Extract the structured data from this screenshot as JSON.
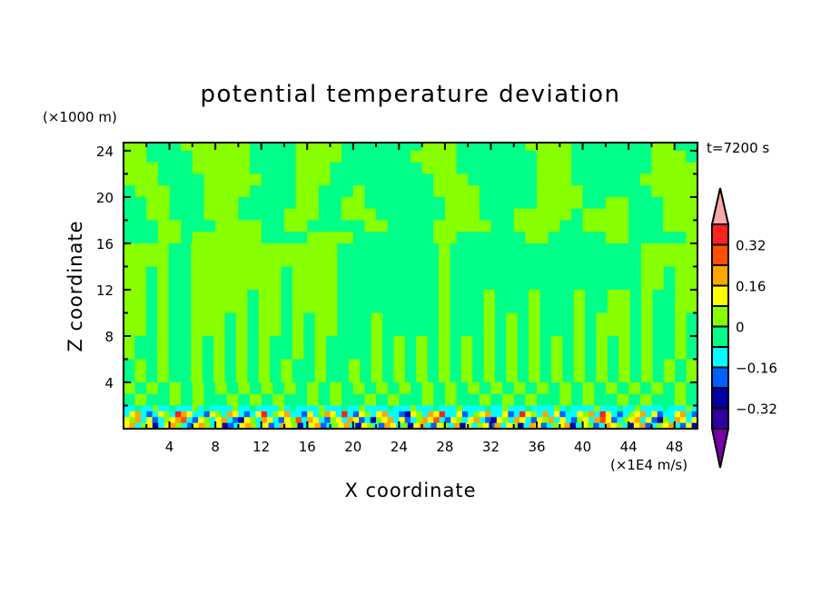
{
  "chart_data": {
    "type": "heatmap",
    "title": "potential temperature deviation",
    "xlabel": "X coordinate",
    "ylabel": "Z coordinate",
    "x_units": "(×1E4 m/s)",
    "y_units": "(×1000 m)",
    "time_label": "t=7200 s",
    "xlim": [
      0,
      50
    ],
    "ylim": [
      0,
      24.7
    ],
    "x_ticks": [
      4,
      8,
      12,
      16,
      20,
      24,
      28,
      32,
      36,
      40,
      44,
      48
    ],
    "y_ticks": [
      4,
      8,
      12,
      16,
      20,
      24
    ],
    "colorbar": {
      "levels": [
        -0.4,
        -0.32,
        -0.24,
        -0.16,
        -0.08,
        0,
        0.08,
        0.16,
        0.24,
        0.32,
        0.4
      ],
      "labeled_levels": [
        "0.32",
        "0.16",
        "0",
        "−0.16",
        "−0.32"
      ],
      "labeled_values": [
        0.32,
        0.16,
        0,
        -0.16,
        -0.32
      ],
      "over_color": "#f8a8a8",
      "under_color": "#7800a8",
      "colors": [
        "#3000a0",
        "#0000a8",
        "#0060ff",
        "#00ffff",
        "#00ff88",
        "#88ff00",
        "#ffff00",
        "#ffa500",
        "#ff5000",
        "#ff2020"
      ]
    },
    "cell_key": {
      "V": "#7800a8",
      "I": "#3000a0",
      "D": "#0000a8",
      "B": "#0060ff",
      "C": "#00ffff",
      "S": "#00ff88",
      "G": "#88ff00",
      "Y": "#ffff00",
      "O": "#ffa500",
      "r": "#ff5000",
      "R": "#ff2020",
      "P": "#f8a8a8"
    },
    "rows": [
      {
        "z": [
          24,
          24.7
        ],
        "cells": "GGSSSGGGGGGSSSSGGGGSSSSSSSGGGSSSSSSGGGGSSSSSSSGGSS"
      },
      {
        "z": [
          23,
          24
        ],
        "cells": "GGSSSSGGGGGSSSSGGGGSSSSSSGGGGSSSSSSSGGGSSSSSSSGGGS"
      },
      {
        "z": [
          22,
          23
        ],
        "cells": "GGGSSSGGGGGSSSSGGGSSSSSSSSGGGSSSSSSSGGGSSSSSSSGGGG"
      },
      {
        "z": [
          21,
          22
        ],
        "cells": "GGGSSSSGGGGGSSSGGGSSSSSSSSSGGGSSSSSSGGGSSSSSSGGGGG"
      },
      {
        "z": [
          20,
          21
        ],
        "cells": "SGGGSSSGGGGSSSSGGSSSGSSSSSSGGGGSSSSSGGGGSSSSSSGGGG"
      },
      {
        "z": [
          19,
          20
        ],
        "cells": "SSGGSSSGGGSSSSSGGSSGGSSSSSSSGGGSSSSSGGGGSSGGSSSGGG"
      },
      {
        "z": [
          18,
          19
        ],
        "cells": "SSGGSSSGGGSSSSGGGSSGGGSSSSSSGGGSSSGGGGGSGGGGSSSGGG"
      },
      {
        "z": [
          17,
          18
        ],
        "cells": "SSSGGSSSGGGGSSGGSSSSSGGSSSSGGGGGSSGGGGSSGGGGSSSGGG"
      },
      {
        "z": [
          16,
          17
        ],
        "cells": "SSSGGSGGGGGGSSSSGGGGSSSSSSSGGSSSSSSGGSSSSSGGSSSSSG"
      },
      {
        "z": [
          14,
          16
        ],
        "cells": "GGGGSSGGGGGGGGGGGGGSSSSSSSSSGSSSSSSSSSSSSSSSSSGGGGG"
      },
      {
        "z": [
          12,
          14
        ],
        "cells": "GGSGSSGGGGGGGGSGGGGSSSSSSSSSGSSSSSSSSSSSSSSSSSGGSGG"
      },
      {
        "z": [
          10,
          12
        ],
        "cells": "GGSGSSGGGGGSGGSGGGGSSSSSSSSSGSSSGSSSGSSSGSSGGSGSSGG"
      },
      {
        "z": [
          8,
          10
        ],
        "cells": "GGSGSSGGGSGSGGSGSGGSSSGSSSSSGSSSGSGSGSSSGSGGGSGSSGS"
      },
      {
        "z": [
          6,
          8
        ],
        "cells": "GSSGSSGSGSGSGSSGSGSSSSGSGSGSGSGSGSGSGSGSGSGSGSGSSGS"
      },
      {
        "z": [
          4,
          6
        ],
        "cells": "SGSGSSGSGSGSGSGSSGSSGSGSGSGSGSGSGSGSGSGSGSGSGSGSGSG"
      },
      {
        "z": [
          3,
          4
        ],
        "cells": "GSGSGSGSGSGSGSGSGSGSGSGSGSGSGSGSGSGSGSGSGSGSGSGSGS"
      },
      {
        "z": [
          2,
          3
        ],
        "cells": "SGSSGSGSSGSGSGSSGSGSSGSGSSGSGSSGSGSGSSGSGSSGSGSSGS"
      },
      {
        "z": [
          1.5,
          2
        ],
        "cells": "CCSCCGCCSCCCGCSCCCCGCCSCCCCGCSCCCCGCCCSCCGCCCCSCCCGCCCSCCCGCCCCSCCGCCCSCCCCGCSCCCCGCCCSCCGCCCCSCCCGC"
      },
      {
        "z": [
          1,
          1.5
        ],
        "cells": "CYOCBCYGCROYCCBYGCOYCBCYRCGYOCCBYCGOYCRCBYGCYOCCBDYGCOYRCCYBCGYOCCYBCRYGCOCYBCCYGOCRYCBCGYOCYBCCYOCB"
      },
      {
        "z": [
          0.5,
          1
        ],
        "cells": "YGOCYBCGYOrCBYGCYOCBDYGCOYCBYGrCOYCBGYCOYBCDGYOCYBCGOYrCBYGCYOCBDYGCOYCBYGOCYCBGYCOrYBCGYOCYBDGCOYCY"
      },
      {
        "z": [
          0,
          0.5
        ],
        "cells": "YOCGYDCYOGCBYOGCYDBCYOGCYBCOYGDCYOBCGYOCDYGCBOYCGDYOCBYGCODYCGYBOCYGDCOYBCGYODCYGBCOYGCDYOBCGYOCBYD"
      }
    ]
  }
}
